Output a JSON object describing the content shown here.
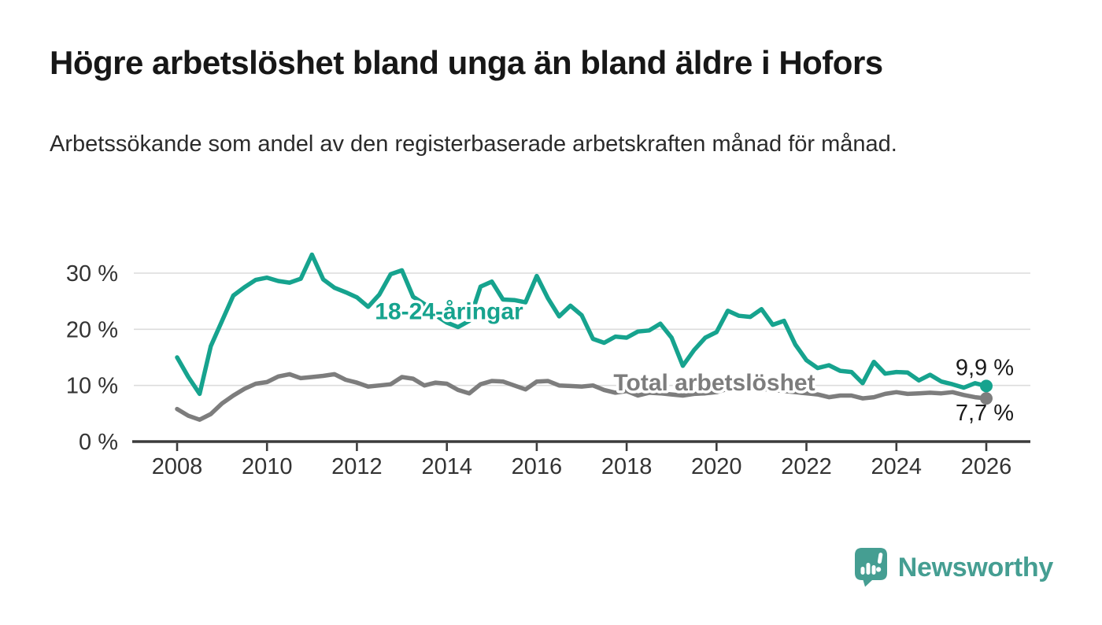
{
  "page": {
    "background": "#ffffff"
  },
  "header": {
    "title": "Högre arbetslöshet bland unga än bland äldre i Hofors",
    "subtitle": "Arbetssökande som andel av den registerbaserade arbetskraften månad för månad."
  },
  "chart_data": {
    "type": "line",
    "unit": "%",
    "title": "Högre arbetslöshet bland unga än bland äldre i Hofors",
    "xlabel": "",
    "ylabel": "Arbetssökande som andel av den registerbaserade arbetskraften",
    "x_start": 2008,
    "x_step": 0.25,
    "xlim": [
      2007.9,
      2027
    ],
    "ylim": [
      0,
      35
    ],
    "grid": "horizontal",
    "grid_color": "#dcdcdc",
    "axis_color": "#3b3b3b",
    "axis_text_color": "#333333",
    "value_label_color": "#1a1a1a",
    "x_tick_years": [
      2008,
      2010,
      2012,
      2014,
      2016,
      2018,
      2020,
      2022,
      2024,
      2026
    ],
    "x_tick_labels": [
      "2008",
      "2010",
      "2012",
      "2014",
      "2016",
      "2018",
      "2020",
      "2022",
      "2024",
      "2026"
    ],
    "y_ticks": [
      {
        "value": 0,
        "label": "0 %"
      },
      {
        "value": 10,
        "label": "10 %"
      },
      {
        "value": 20,
        "label": "20 %"
      },
      {
        "value": 30,
        "label": "30 %"
      }
    ],
    "series": [
      {
        "name": "18-24-åringar",
        "color": "#16a38e",
        "end_label": "9,9 %",
        "end_value": 9.9,
        "values": [
          15.0,
          11.5,
          8.5,
          17.0,
          21.5,
          26.0,
          27.5,
          28.8,
          29.2,
          28.6,
          28.3,
          29.0,
          33.3,
          28.9,
          27.4,
          26.6,
          25.7,
          24.0,
          26.2,
          29.8,
          30.5,
          25.8,
          24.5,
          22.5,
          21.2,
          20.4,
          21.5,
          27.6,
          28.5,
          25.3,
          25.2,
          24.8,
          29.5,
          25.5,
          22.3,
          24.2,
          22.5,
          18.3,
          17.6,
          18.7,
          18.5,
          19.6,
          19.8,
          21.0,
          18.5,
          13.5,
          16.3,
          18.5,
          19.5,
          23.3,
          22.4,
          22.2,
          23.6,
          20.8,
          21.5,
          17.3,
          14.5,
          13.1,
          13.6,
          12.6,
          12.4,
          10.4,
          14.2,
          12.1,
          12.4,
          12.3,
          10.9,
          11.9,
          10.7,
          10.2,
          9.6,
          10.4,
          9.9
        ]
      },
      {
        "name": "Total arbetslöshet",
        "color": "#7d7d7d",
        "end_label": "7,7 %",
        "end_value": 7.7,
        "values": [
          5.8,
          4.6,
          3.9,
          4.9,
          6.8,
          8.2,
          9.4,
          10.3,
          10.6,
          11.6,
          12.0,
          11.3,
          11.5,
          11.7,
          12.0,
          11.0,
          10.5,
          9.8,
          10.0,
          10.2,
          11.5,
          11.2,
          10.0,
          10.5,
          10.3,
          9.2,
          8.6,
          10.2,
          10.8,
          10.7,
          10.0,
          9.3,
          10.7,
          10.8,
          10.0,
          9.9,
          9.8,
          10.0,
          9.2,
          8.7,
          9.0,
          8.2,
          8.7,
          8.6,
          8.4,
          8.2,
          8.5,
          8.6,
          8.8,
          9.4,
          9.7,
          9.5,
          9.4,
          9.2,
          9.0,
          8.8,
          8.6,
          8.4,
          7.9,
          8.2,
          8.2,
          7.7,
          7.9,
          8.5,
          8.8,
          8.5,
          8.6,
          8.7,
          8.6,
          8.8,
          8.3,
          7.9,
          7.7
        ]
      }
    ],
    "legend_position": "inline-labels"
  },
  "footer": {
    "brand": "Newsworthy",
    "logo_color": "#459e92"
  }
}
